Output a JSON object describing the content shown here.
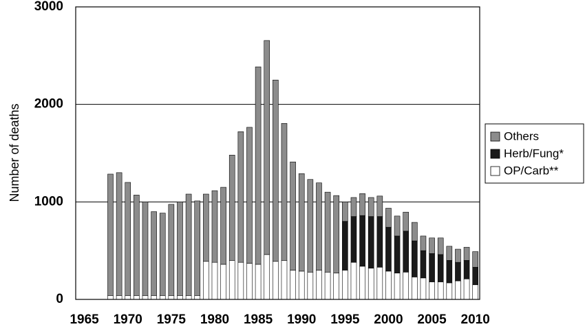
{
  "chart_data": {
    "type": "stacked-bar",
    "y_label": "Number of deaths",
    "x": [
      1968,
      1969,
      1970,
      1971,
      1972,
      1973,
      1974,
      1975,
      1976,
      1977,
      1978,
      1979,
      1980,
      1981,
      1982,
      1983,
      1984,
      1985,
      1986,
      1987,
      1988,
      1989,
      1990,
      1991,
      1992,
      1993,
      1994,
      1995,
      1996,
      1997,
      1998,
      1999,
      2000,
      2001,
      2002,
      2003,
      2004,
      2005,
      2006,
      2007,
      2008,
      2009,
      2010
    ],
    "series": [
      {
        "name": "OP/Carb**",
        "color": "#ffffff",
        "values": [
          40,
          40,
          40,
          40,
          40,
          40,
          40,
          40,
          40,
          40,
          40,
          390,
          380,
          360,
          400,
          380,
          370,
          360,
          460,
          390,
          400,
          300,
          290,
          280,
          300,
          280,
          270,
          300,
          380,
          340,
          320,
          330,
          290,
          270,
          280,
          230,
          220,
          180,
          180,
          170,
          190,
          210,
          150
        ]
      },
      {
        "name": "Herb/Fung*",
        "color": "#1a1a1a",
        "values": [
          0,
          0,
          0,
          0,
          0,
          0,
          0,
          0,
          0,
          0,
          0,
          0,
          0,
          0,
          0,
          0,
          0,
          0,
          0,
          0,
          0,
          0,
          0,
          0,
          0,
          0,
          0,
          500,
          470,
          520,
          530,
          520,
          450,
          380,
          420,
          370,
          280,
          290,
          280,
          230,
          190,
          190,
          180
        ]
      },
      {
        "name": "Others",
        "color": "#8c8c8c",
        "values": [
          1245,
          1260,
          1160,
          1030,
          960,
          860,
          845,
          935,
          960,
          1040,
          970,
          690,
          735,
          790,
          1080,
          1340,
          1395,
          2025,
          2195,
          1860,
          1405,
          1110,
          1000,
          950,
          895,
          820,
          795,
          200,
          195,
          225,
          195,
          210,
          195,
          205,
          195,
          190,
          150,
          160,
          170,
          145,
          135,
          135,
          160
        ]
      }
    ],
    "xlim": [
      1964,
      2010.5
    ],
    "xticks": [
      1965,
      1970,
      1975,
      1980,
      1985,
      1990,
      1995,
      2000,
      2005,
      2010
    ],
    "ylim": [
      0,
      3000
    ],
    "yticks": [
      0,
      1000,
      2000,
      3000
    ],
    "grid": true
  }
}
